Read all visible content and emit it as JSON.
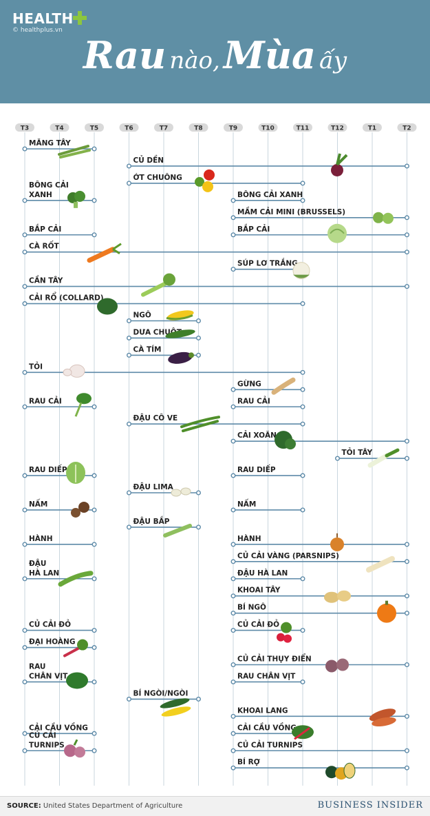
{
  "header": {
    "brand": "HEALTH",
    "site": "healthplus.vn",
    "title_part1": "Rau",
    "title_part2": "nào,",
    "title_part3": "Mùa",
    "title_part4": "ấy"
  },
  "colors": {
    "header_bg": "#5f8fa5",
    "bar": "#5d8aa8",
    "grid": "#c9d6de",
    "month_pill": "#d9d9d9"
  },
  "footer": {
    "source_label": "SOURCE:",
    "source_text": "United States Department of Agriculture",
    "publisher": "BUSINESS INSIDER"
  },
  "chart_data": {
    "type": "timeline",
    "months": [
      "T3",
      "T4",
      "T5",
      "T6",
      "T7",
      "T8",
      "T9",
      "T10",
      "T11",
      "T12",
      "T1",
      "T2"
    ],
    "rows": [
      {
        "label": "MĂNG TÂY",
        "start": 0,
        "end": 2,
        "slot": 1,
        "icon": "asparagus"
      },
      {
        "label": "CỦ DỀN",
        "start": 3,
        "end": 11,
        "slot": 2,
        "icon": "beet"
      },
      {
        "label": "ỚT CHUÔNG",
        "start": 3,
        "end": 8,
        "slot": 3,
        "icon": "bell-pepper"
      },
      {
        "label": "BÔNG CẢI",
        "label2": "XANH",
        "start": 0,
        "end": 2,
        "slot": 4,
        "icon": "broccoli"
      },
      {
        "label": "BÔNG CẢI XANH",
        "start": 6,
        "end": 8,
        "slot": 4,
        "icon": ""
      },
      {
        "label": "MẦM CẢI MINI (BRUSSELS)",
        "start": 6,
        "end": 11,
        "slot": 5,
        "icon": "brussels-sprouts"
      },
      {
        "label": "BẮP CẢI",
        "start": 0,
        "end": 2,
        "slot": 6,
        "icon": ""
      },
      {
        "label": "BẮP CẢI",
        "start": 6,
        "end": 11,
        "slot": 6,
        "icon": "cabbage"
      },
      {
        "label": "CÀ RỐT",
        "start": 0,
        "end": 11,
        "slot": 7,
        "icon": "carrot"
      },
      {
        "label": "SÚP LƠ TRẮNG",
        "start": 6,
        "end": 8,
        "slot": 8,
        "icon": "cauliflower"
      },
      {
        "label": "CẦN TÂY",
        "start": 0,
        "end": 11,
        "slot": 9,
        "icon": "celery"
      },
      {
        "label": "CẢI RỔ (COLLARD)",
        "start": 0,
        "end": 8,
        "slot": 10,
        "icon": "collard"
      },
      {
        "label": "NGÔ",
        "start": 3,
        "end": 5,
        "slot": 11,
        "icon": "corn"
      },
      {
        "label": "DƯA CHUỘT",
        "start": 3,
        "end": 5,
        "slot": 12,
        "icon": "cucumber"
      },
      {
        "label": "CÀ TÍM",
        "start": 3,
        "end": 5,
        "slot": 13,
        "icon": "eggplant"
      },
      {
        "label": "TỎI",
        "start": 0,
        "end": 8,
        "slot": 14,
        "icon": "garlic"
      },
      {
        "label": "GỪNG",
        "start": 6,
        "end": 8,
        "slot": 15,
        "icon": "ginger"
      },
      {
        "label": "RAU CẢI",
        "start": 0,
        "end": 2,
        "slot": 16,
        "icon": "greens"
      },
      {
        "label": "RAU CẢI",
        "start": 6,
        "end": 8,
        "slot": 16,
        "icon": ""
      },
      {
        "label": "ĐẬU CÔ VE",
        "start": 3,
        "end": 8,
        "slot": 17,
        "icon": "green-beans"
      },
      {
        "label": "CẢI XOĂN",
        "start": 6,
        "end": 11,
        "slot": 18,
        "icon": "kale"
      },
      {
        "label": "TỎI TÂY",
        "start": 9,
        "end": 11,
        "slot": 19,
        "icon": "leek"
      },
      {
        "label": "RAU DIẾP",
        "start": 0,
        "end": 2,
        "slot": 20,
        "icon": "lettuce"
      },
      {
        "label": "RAU DIẾP",
        "start": 6,
        "end": 8,
        "slot": 20,
        "icon": ""
      },
      {
        "label": "ĐẬU LIMA",
        "start": 3,
        "end": 5,
        "slot": 21,
        "icon": "lima-beans"
      },
      {
        "label": "NẤM",
        "start": 0,
        "end": 2,
        "slot": 22,
        "icon": "mushroom"
      },
      {
        "label": "NẤM",
        "start": 6,
        "end": 8,
        "slot": 22,
        "icon": ""
      },
      {
        "label": "ĐẬU BẮP",
        "start": 3,
        "end": 5,
        "slot": 23,
        "icon": "okra"
      },
      {
        "label": "HÀNH",
        "start": 0,
        "end": 2,
        "slot": 24,
        "icon": ""
      },
      {
        "label": "HÀNH",
        "start": 6,
        "end": 11,
        "slot": 24,
        "icon": "onion"
      },
      {
        "label": "CỦ CẢI VÀNG (PARSNIPS)",
        "start": 6,
        "end": 11,
        "slot": 25,
        "icon": "parsnip"
      },
      {
        "label": "ĐẬU",
        "label2": "HÀ LAN",
        "start": 0,
        "end": 2,
        "slot": 26,
        "icon": "peas"
      },
      {
        "label": "ĐẬU HÀ LAN",
        "start": 6,
        "end": 8,
        "slot": 26,
        "icon": ""
      },
      {
        "label": "KHOAI TÂY",
        "start": 6,
        "end": 11,
        "slot": 27,
        "icon": "potato"
      },
      {
        "label": "BÍ NGÔ",
        "start": 6,
        "end": 11,
        "slot": 28,
        "icon": "pumpkin"
      },
      {
        "label": "CỦ CẢI ĐỎ",
        "start": 0,
        "end": 2,
        "slot": 29,
        "icon": ""
      },
      {
        "label": "CỦ CẢI ĐỎ",
        "start": 6,
        "end": 8,
        "slot": 29,
        "icon": "radish"
      },
      {
        "label": "ĐẠI HOÀNG",
        "start": 0,
        "end": 2,
        "slot": 30,
        "icon": "rhubarb"
      },
      {
        "label": "CỦ CẢI THỤY ĐIỂN",
        "start": 6,
        "end": 11,
        "slot": 31,
        "icon": "rutabaga"
      },
      {
        "label": "RAU",
        "label2": "CHÂN VỊT",
        "start": 0,
        "end": 2,
        "slot": 32,
        "icon": "spinach"
      },
      {
        "label": "RAU CHÂN VỊT",
        "start": 6,
        "end": 8,
        "slot": 32,
        "icon": ""
      },
      {
        "label": "BÍ NGÒI/NGÒI",
        "start": 3,
        "end": 5,
        "slot": 33,
        "icon": "zucchini"
      },
      {
        "label": "KHOAI LANG",
        "start": 6,
        "end": 11,
        "slot": 34,
        "icon": "sweet-potato"
      },
      {
        "label": "CẢI CẦU VỒNG",
        "start": 0,
        "end": 2,
        "slot": 35,
        "icon": ""
      },
      {
        "label": "CẢI CẦU VỒNG",
        "start": 6,
        "end": 8,
        "slot": 35,
        "icon": "chard"
      },
      {
        "label": "CỦ CẢI",
        "label2": "TURNIPS",
        "start": 0,
        "end": 2,
        "slot": 36,
        "icon": "turnip"
      },
      {
        "label": "CỦ CẢI TURNIPS",
        "start": 6,
        "end": 11,
        "slot": 36,
        "icon": ""
      },
      {
        "label": "BÍ RỢ",
        "start": 6,
        "end": 11,
        "slot": 37,
        "icon": "squash"
      }
    ]
  }
}
